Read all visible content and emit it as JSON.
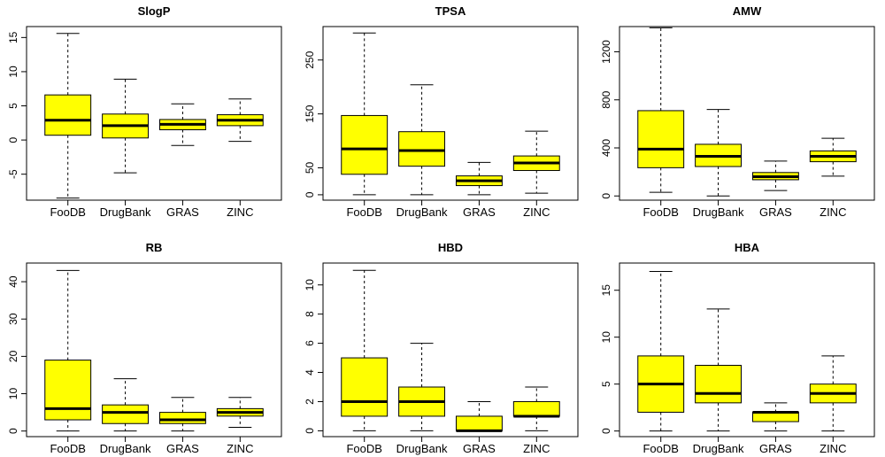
{
  "style": {
    "box_fill": "#ffff00",
    "stroke": "#000000",
    "background": "#ffffff"
  },
  "chart_data": [
    {
      "type": "boxplot",
      "title": "SlogP",
      "categories": [
        "FooDB",
        "DrugBank",
        "GRAS",
        "ZINC"
      ],
      "yticks": [
        -5,
        0,
        5,
        10,
        15
      ],
      "ylim": [
        -8.8,
        16.6
      ],
      "stats": [
        {
          "min": -8.5,
          "q1": 0.7,
          "median": 2.9,
          "q3": 6.6,
          "max": 15.6
        },
        {
          "min": -4.8,
          "q1": 0.3,
          "median": 2.1,
          "q3": 3.8,
          "max": 8.9
        },
        {
          "min": -0.8,
          "q1": 1.5,
          "median": 2.3,
          "q3": 3.0,
          "max": 5.3
        },
        {
          "min": -0.2,
          "q1": 2.1,
          "median": 2.9,
          "q3": 3.7,
          "max": 6.0
        }
      ]
    },
    {
      "type": "boxplot",
      "title": "TPSA",
      "categories": [
        "FooDB",
        "DrugBank",
        "GRAS",
        "ZINC"
      ],
      "yticks": [
        0,
        50,
        150,
        250
      ],
      "ylim": [
        -10,
        312
      ],
      "stats": [
        {
          "min": 0,
          "q1": 38,
          "median": 85,
          "q3": 147,
          "max": 300
        },
        {
          "min": 0,
          "q1": 53,
          "median": 82,
          "q3": 117,
          "max": 204
        },
        {
          "min": 0,
          "q1": 17,
          "median": 26,
          "q3": 35,
          "max": 60
        },
        {
          "min": 3,
          "q1": 45,
          "median": 59,
          "q3": 72,
          "max": 118
        }
      ]
    },
    {
      "type": "boxplot",
      "title": "AMW",
      "categories": [
        "FooDB",
        "DrugBank",
        "GRAS",
        "ZINC"
      ],
      "yticks": [
        0,
        400,
        800,
        1200
      ],
      "ylim": [
        -35,
        1410
      ],
      "stats": [
        {
          "min": 30,
          "q1": 235,
          "median": 390,
          "q3": 710,
          "max": 1400
        },
        {
          "min": 0,
          "q1": 245,
          "median": 330,
          "q3": 430,
          "max": 720
        },
        {
          "min": 45,
          "q1": 135,
          "median": 160,
          "q3": 195,
          "max": 290
        },
        {
          "min": 165,
          "q1": 285,
          "median": 330,
          "q3": 375,
          "max": 480
        }
      ]
    },
    {
      "type": "boxplot",
      "title": "RB",
      "categories": [
        "FooDB",
        "DrugBank",
        "GRAS",
        "ZINC"
      ],
      "yticks": [
        0,
        10,
        20,
        30,
        40
      ],
      "ylim": [
        -1.5,
        45
      ],
      "stats": [
        {
          "min": 0,
          "q1": 3,
          "median": 6,
          "q3": 19,
          "max": 43
        },
        {
          "min": 0,
          "q1": 2,
          "median": 5,
          "q3": 7,
          "max": 14
        },
        {
          "min": 0,
          "q1": 2,
          "median": 3,
          "q3": 5,
          "max": 9
        },
        {
          "min": 1,
          "q1": 4,
          "median": 5,
          "q3": 6,
          "max": 9
        }
      ]
    },
    {
      "type": "boxplot",
      "title": "HBD",
      "categories": [
        "FooDB",
        "DrugBank",
        "GRAS",
        "ZINC"
      ],
      "yticks": [
        0,
        2,
        4,
        6,
        8,
        10
      ],
      "ylim": [
        -0.4,
        11.5
      ],
      "stats": [
        {
          "min": 0,
          "q1": 1,
          "median": 2,
          "q3": 5,
          "max": 11
        },
        {
          "min": 0,
          "q1": 1,
          "median": 2,
          "q3": 3,
          "max": 6
        },
        {
          "min": 0,
          "q1": 0,
          "median": 0,
          "q3": 1,
          "max": 2
        },
        {
          "min": 0,
          "q1": 1,
          "median": 1,
          "q3": 2,
          "max": 3
        }
      ]
    },
    {
      "type": "boxplot",
      "title": "HBA",
      "categories": [
        "FooDB",
        "DrugBank",
        "GRAS",
        "ZINC"
      ],
      "yticks": [
        0,
        5,
        10,
        15
      ],
      "ylim": [
        -0.6,
        17.9
      ],
      "stats": [
        {
          "min": 0,
          "q1": 2,
          "median": 5,
          "q3": 8,
          "max": 17
        },
        {
          "min": 0,
          "q1": 3,
          "median": 4,
          "q3": 7,
          "max": 13
        },
        {
          "min": 0,
          "q1": 1,
          "median": 2,
          "q3": 2,
          "max": 3
        },
        {
          "min": 0,
          "q1": 3,
          "median": 4,
          "q3": 5,
          "max": 8
        }
      ]
    }
  ]
}
